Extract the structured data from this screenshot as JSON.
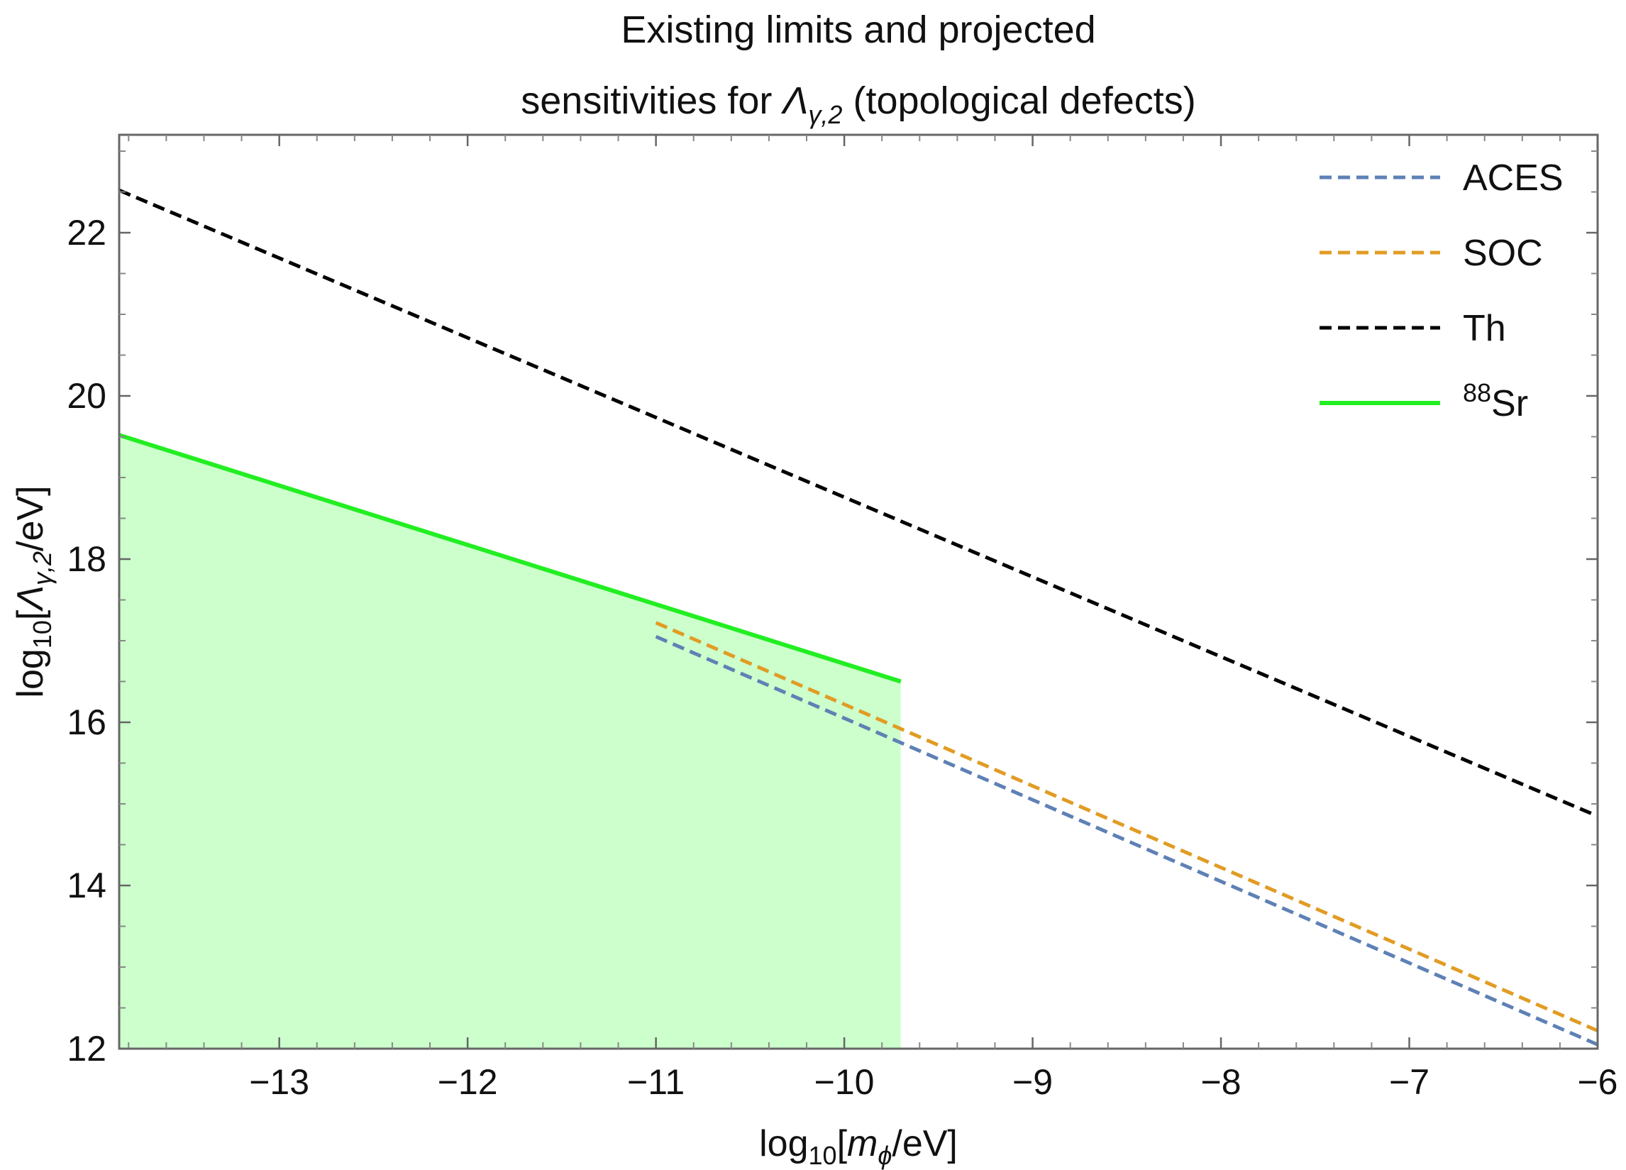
{
  "chart_data": {
    "type": "line",
    "title_line1": "Existing limits and projected",
    "title_line2_pre": "sensitivities for ",
    "title_line2_sym": "Λ",
    "title_line2_sub": "γ,2",
    "title_line2_post": " (topological defects)",
    "xlabel": {
      "pre": "log",
      "sub": "10",
      "mid": "[",
      "sym": "m",
      "symsub": "ϕ",
      "post": "/eV]"
    },
    "ylabel": {
      "pre": "log",
      "sub": "10",
      "mid": "[",
      "sym": "Λ",
      "symsub": "γ,2",
      "post": "/eV]"
    },
    "xlim": [
      -13.85,
      -6
    ],
    "ylim": [
      12,
      23.2
    ],
    "x_ticks": [
      -13,
      -12,
      -11,
      -10,
      -9,
      -8,
      -7,
      -6
    ],
    "x_tick_labels": [
      "−13",
      "−12",
      "−11",
      "−10",
      "−9",
      "−8",
      "−7",
      "−6"
    ],
    "y_ticks": [
      12,
      14,
      16,
      18,
      20,
      22
    ],
    "y_tick_labels": [
      "12",
      "14",
      "16",
      "18",
      "20",
      "22"
    ],
    "grid": false,
    "legend_position": "top-right",
    "series": [
      {
        "name": "ACES",
        "color": "#5e81b5",
        "dash": true,
        "x": [
          -11.0,
          -6.0
        ],
        "y": [
          17.05,
          12.05
        ]
      },
      {
        "name": "SOC",
        "color": "#e19c24",
        "dash": true,
        "x": [
          -11.0,
          -6.0
        ],
        "y": [
          17.22,
          12.22
        ]
      },
      {
        "name": "Th",
        "color": "#000000",
        "dash": true,
        "x": [
          -13.85,
          -6.0
        ],
        "y": [
          22.52,
          14.85
        ]
      },
      {
        "name": "Sr",
        "name_sup": "88",
        "color": "#22ee22",
        "dash": false,
        "fill": "#ccffcc",
        "x": [
          -13.85,
          -9.7
        ],
        "y": [
          19.52,
          16.5
        ]
      }
    ]
  }
}
